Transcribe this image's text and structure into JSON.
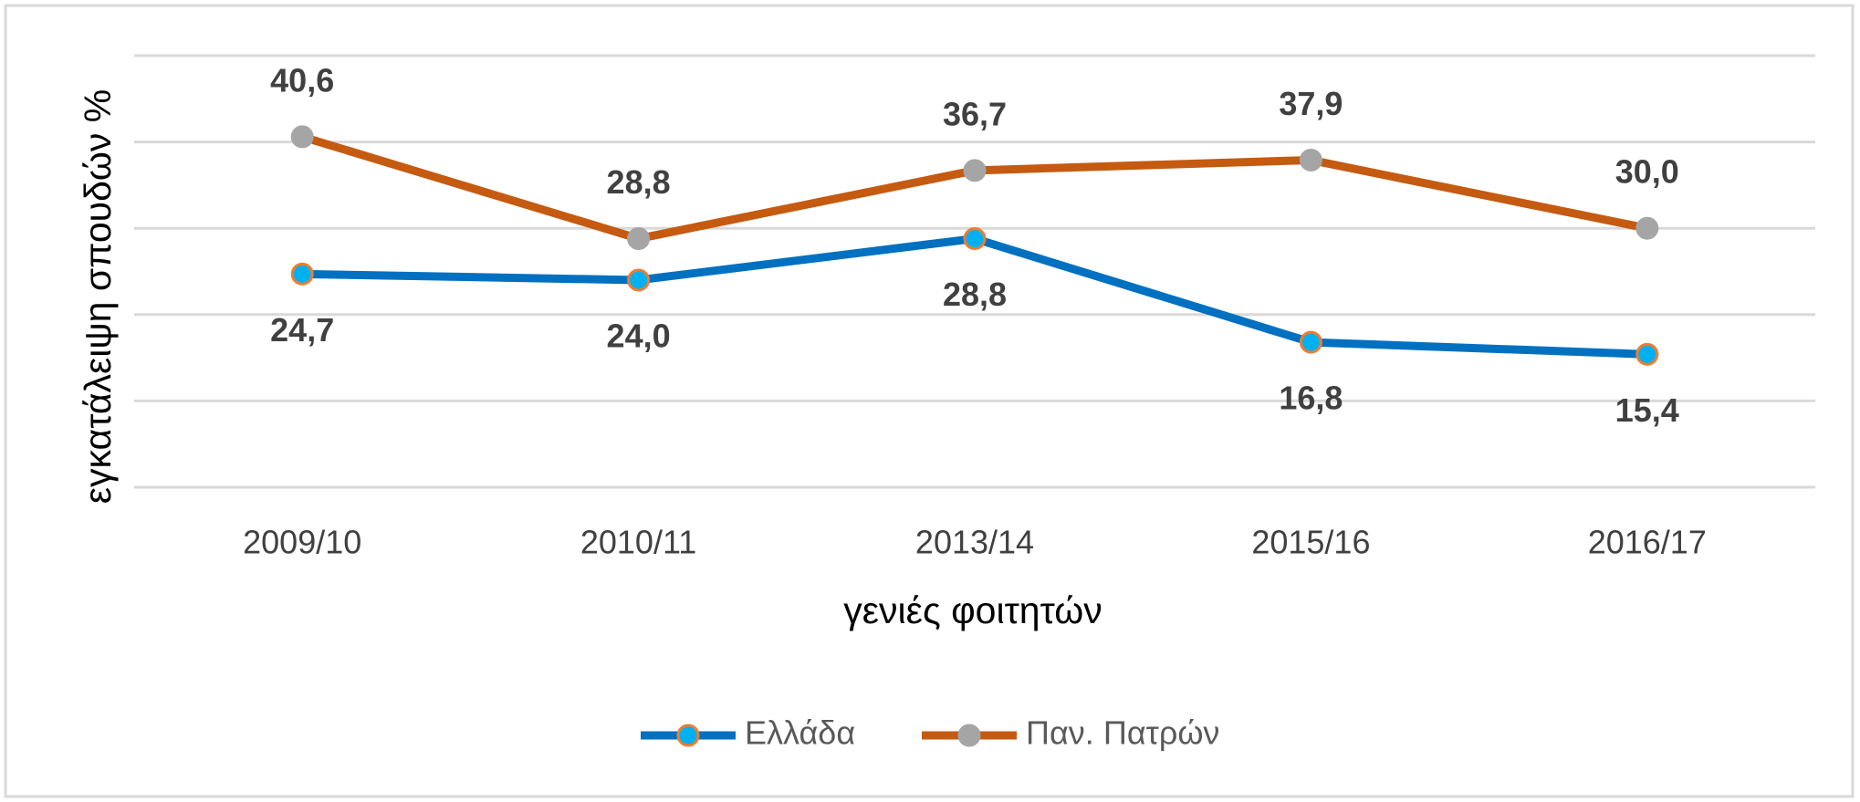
{
  "chart_data": {
    "type": "line",
    "y_label": "εγκατάλειψη σπουδών %",
    "x_label": "γενιές φοιτητών",
    "categories": [
      "2009/10",
      "2010/11",
      "2013/14",
      "2015/16",
      "2016/17"
    ],
    "series": [
      {
        "name": "Ελλάδα",
        "color": "#0070C0",
        "marker_color": "#00B0F0",
        "marker_edge": "#ED7D31",
        "values": [
          24.7,
          24.0,
          28.8,
          16.8,
          15.4
        ],
        "value_labels": [
          "24,7",
          "24,0",
          "28,8",
          "16,8",
          "15,4"
        ]
      },
      {
        "name": "Παν. Πατρών",
        "color": "#C55A11",
        "marker_color": "#A5A5A5",
        "marker_edge": "#A5A5A5",
        "values": [
          40.6,
          28.8,
          36.7,
          37.9,
          30.0
        ],
        "value_labels": [
          "40,6",
          "28,8",
          "36,7",
          "37,9",
          "30,0"
        ]
      }
    ],
    "ylim": [
      0,
      50
    ],
    "yticks": [
      0,
      10,
      20,
      30,
      40,
      50
    ],
    "grid": true,
    "legend": "bottom"
  }
}
